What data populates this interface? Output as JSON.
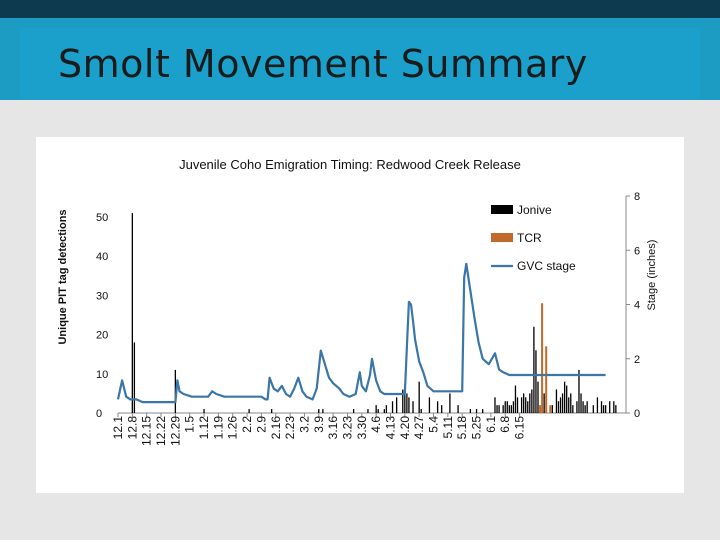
{
  "slide": {
    "title": "Smolt Movement Summary"
  },
  "chart_data": {
    "type": "bar",
    "title": "Juvenile Coho Emigration Timing: Redwood Creek Release",
    "ylabel": "Unique PIT tag detections",
    "y2label": "Stage (inches)",
    "ylim": [
      0,
      50
    ],
    "y2lim": [
      0,
      8
    ],
    "yticks": [
      0,
      10,
      20,
      30,
      40,
      50
    ],
    "y2ticks": [
      0,
      2,
      4,
      6,
      8
    ],
    "xtick_labels": [
      "12.1",
      "12.8",
      "12.15",
      "12.22",
      "12.29",
      "1.5",
      "1.12",
      "1.19",
      "1.26",
      "2.2",
      "2.9",
      "2.16",
      "2.23",
      "3.2",
      "3.9",
      "3.16",
      "3.23",
      "3.30",
      "4.6",
      "4.13",
      "4.20",
      "4.27",
      "5.4",
      "5.11",
      "5.18",
      "5.25",
      "6.1",
      "6.8",
      "6.15"
    ],
    "legend": {
      "placement": "top-right",
      "entries": [
        "Jonive",
        "TCR",
        "GVC stage"
      ]
    },
    "colors": {
      "Jonive": "#000000",
      "TCR": "#c0692a",
      "GVC stage": "#3a76a8"
    },
    "series": [
      {
        "name": "Jonive",
        "kind": "bar",
        "points": [
          [
            7,
            51
          ],
          [
            8,
            18
          ],
          [
            28,
            11
          ],
          [
            42,
            1
          ],
          [
            64,
            1
          ],
          [
            75,
            1
          ],
          [
            98,
            1
          ],
          [
            100,
            1
          ],
          [
            115,
            1
          ],
          [
            122,
            1
          ],
          [
            126,
            2
          ],
          [
            127,
            1
          ],
          [
            130,
            1
          ],
          [
            131,
            2
          ],
          [
            134,
            3
          ],
          [
            136,
            4
          ],
          [
            139,
            6
          ],
          [
            140,
            5
          ],
          [
            141,
            5
          ],
          [
            142,
            4
          ],
          [
            144,
            3
          ],
          [
            147,
            8
          ],
          [
            148,
            1
          ],
          [
            152,
            4
          ],
          [
            156,
            3
          ],
          [
            158,
            2
          ],
          [
            162,
            5
          ],
          [
            166,
            2
          ],
          [
            172,
            1
          ],
          [
            175,
            1
          ],
          [
            178,
            1
          ],
          [
            184,
            4
          ],
          [
            185,
            2
          ],
          [
            186,
            2
          ],
          [
            188,
            2
          ],
          [
            189,
            3
          ],
          [
            190,
            3
          ],
          [
            191,
            2
          ],
          [
            192,
            2
          ],
          [
            193,
            3
          ],
          [
            194,
            7
          ],
          [
            195,
            4
          ],
          [
            197,
            4
          ],
          [
            198,
            5
          ],
          [
            199,
            4
          ],
          [
            200,
            3
          ],
          [
            201,
            5
          ],
          [
            202,
            6
          ],
          [
            203,
            22
          ],
          [
            204,
            16
          ],
          [
            205,
            8
          ],
          [
            208,
            5
          ],
          [
            212,
            2
          ],
          [
            214,
            6
          ],
          [
            215,
            3
          ],
          [
            216,
            4
          ],
          [
            217,
            5
          ],
          [
            218,
            8
          ],
          [
            219,
            7
          ],
          [
            220,
            4
          ],
          [
            221,
            5
          ],
          [
            222,
            2
          ],
          [
            224,
            3
          ],
          [
            225,
            11
          ],
          [
            226,
            5
          ],
          [
            227,
            3
          ],
          [
            228,
            2
          ],
          [
            229,
            3
          ],
          [
            232,
            2
          ],
          [
            234,
            4
          ],
          [
            236,
            3
          ],
          [
            237,
            2
          ],
          [
            238,
            2
          ],
          [
            240,
            3
          ],
          [
            242,
            3
          ],
          [
            243,
            2
          ]
        ]
      },
      {
        "name": "TCR",
        "kind": "bar",
        "points": [
          [
            207,
            28
          ],
          [
            209,
            17
          ],
          [
            206,
            2
          ],
          [
            211,
            2
          ]
        ]
      },
      {
        "name": "GVC stage",
        "kind": "line",
        "points": [
          [
            0,
            0.5
          ],
          [
            2,
            1.2
          ],
          [
            4,
            0.6
          ],
          [
            6,
            0.5
          ],
          [
            9,
            0.5
          ],
          [
            12,
            0.4
          ],
          [
            16,
            0.4
          ],
          [
            22,
            0.4
          ],
          [
            26,
            0.4
          ],
          [
            28,
            0.4
          ],
          [
            29,
            1.2
          ],
          [
            30,
            0.8
          ],
          [
            32,
            0.7
          ],
          [
            36,
            0.6
          ],
          [
            40,
            0.6
          ],
          [
            44,
            0.6
          ],
          [
            46,
            0.8
          ],
          [
            48,
            0.7
          ],
          [
            52,
            0.6
          ],
          [
            58,
            0.6
          ],
          [
            62,
            0.6
          ],
          [
            66,
            0.6
          ],
          [
            70,
            0.6
          ],
          [
            72,
            0.5
          ],
          [
            73,
            0.5
          ],
          [
            74,
            1.3
          ],
          [
            76,
            0.9
          ],
          [
            78,
            0.8
          ],
          [
            80,
            1.0
          ],
          [
            82,
            0.7
          ],
          [
            84,
            0.6
          ],
          [
            86,
            0.9
          ],
          [
            88,
            1.3
          ],
          [
            90,
            0.8
          ],
          [
            92,
            0.6
          ],
          [
            95,
            0.5
          ],
          [
            97,
            0.9
          ],
          [
            99,
            2.3
          ],
          [
            101,
            1.8
          ],
          [
            103,
            1.3
          ],
          [
            105,
            1.1
          ],
          [
            108,
            0.9
          ],
          [
            110,
            0.7
          ],
          [
            113,
            0.6
          ],
          [
            116,
            0.7
          ],
          [
            118,
            1.5
          ],
          [
            119,
            1.0
          ],
          [
            121,
            0.8
          ],
          [
            123,
            1.4
          ],
          [
            124,
            2.0
          ],
          [
            126,
            1.2
          ],
          [
            128,
            0.8
          ],
          [
            130,
            0.7
          ],
          [
            134,
            0.7
          ],
          [
            138,
            0.7
          ],
          [
            140,
            0.7
          ],
          [
            142,
            4.1
          ],
          [
            143,
            4.0
          ],
          [
            144,
            3.4
          ],
          [
            145,
            2.7
          ],
          [
            147,
            1.9
          ],
          [
            149,
            1.5
          ],
          [
            151,
            1.0
          ],
          [
            154,
            0.8
          ],
          [
            158,
            0.8
          ],
          [
            162,
            0.8
          ],
          [
            166,
            0.8
          ],
          [
            168,
            0.8
          ],
          [
            169,
            5.0
          ],
          [
            170,
            5.5
          ],
          [
            172,
            4.5
          ],
          [
            174,
            3.5
          ],
          [
            176,
            2.6
          ],
          [
            178,
            2.0
          ],
          [
            181,
            1.8
          ],
          [
            184,
            2.2
          ],
          [
            186,
            1.6
          ],
          [
            188,
            1.5
          ],
          [
            191,
            1.4
          ],
          [
            195,
            1.4
          ],
          [
            200,
            1.4
          ],
          [
            204,
            1.4
          ],
          [
            208,
            1.4
          ],
          [
            214,
            1.4
          ],
          [
            226,
            1.4
          ],
          [
            238,
            1.4
          ]
        ]
      }
    ]
  }
}
